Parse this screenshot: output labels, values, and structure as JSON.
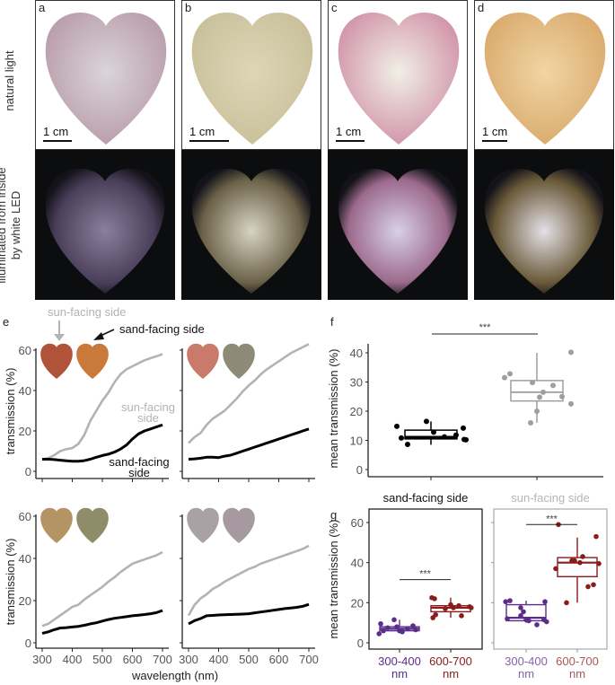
{
  "photos": {
    "row_labels": [
      "natural light",
      "illuminated from inside",
      "by white LED"
    ],
    "panels": [
      {
        "letter": "a",
        "scale": "1 cm",
        "light_colors": [
          "#d9d5d8",
          "#b89aa8"
        ],
        "dark_colors": [
          "#8c7f9e",
          "#4a3f5a"
        ]
      },
      {
        "letter": "b",
        "scale": "1 cm",
        "light_colors": [
          "#ddd7b8",
          "#c8bf98"
        ],
        "dark_colors": [
          "#d8d4c4",
          "#6b6248"
        ]
      },
      {
        "letter": "c",
        "scale": "1 cm",
        "light_colors": [
          "#f1efe6",
          "#cf8fa6"
        ],
        "dark_colors": [
          "#d8d0e6",
          "#9c6a8c"
        ]
      },
      {
        "letter": "d",
        "scale": "1 cm",
        "light_colors": [
          "#f0d6a4",
          "#d9a86a"
        ],
        "dark_colors": [
          "#e4e0e6",
          "#6a5a3a"
        ]
      }
    ]
  },
  "annotations": {
    "panel_e_letter": "e",
    "panel_f_letter": "f",
    "panel_g_letter": "g",
    "sun_facing_side": "sun-facing side",
    "sand_facing_side": "sand-facing side",
    "sun_facing_label_1": "sun-facing",
    "sun_facing_label_2": "side",
    "sand_facing_label_1": "sand-facing",
    "sand_facing_label_2": "side",
    "significance": "***"
  },
  "colors": {
    "sun": "#b3b3b3",
    "sand": "#000000",
    "uv_band": "#5a2d8c",
    "red_band": "#8b1c1c",
    "axis_text": "#555555"
  },
  "chart_data": [
    {
      "id": "e",
      "type": "line",
      "xlabel": "wavelength (nm)",
      "ylabel": "transmission (%)",
      "xlim": [
        300,
        700
      ],
      "ylim": [
        0,
        60
      ],
      "xticks": [
        300,
        400,
        500,
        600,
        700
      ],
      "yticks": [
        0,
        20,
        40,
        60
      ],
      "subplots": [
        {
          "name": "e-top-left",
          "thumb_colors": [
            "#b0533a",
            "#c97a3a"
          ],
          "series": [
            {
              "name": "sun-facing side",
              "x": [
                300,
                320,
                340,
                360,
                380,
                400,
                420,
                440,
                460,
                480,
                500,
                520,
                540,
                560,
                580,
                600,
                620,
                640,
                660,
                680,
                700
              ],
              "y": [
                6,
                6.5,
                8,
                10,
                11,
                11.5,
                13.5,
                18,
                25,
                30,
                35,
                39,
                44,
                48,
                50.5,
                52,
                53.5,
                55,
                56,
                57,
                58
              ]
            },
            {
              "name": "sand-facing side",
              "x": [
                300,
                320,
                340,
                360,
                380,
                400,
                420,
                440,
                460,
                480,
                500,
                520,
                540,
                560,
                580,
                600,
                620,
                640,
                660,
                680,
                700
              ],
              "y": [
                6,
                6,
                5.8,
                5.5,
                5.2,
                5,
                5,
                5.3,
                6,
                7,
                7.8,
                8.5,
                9.5,
                11,
                13,
                16,
                18.5,
                20,
                21,
                22,
                23
              ]
            }
          ]
        },
        {
          "name": "e-top-right",
          "thumb_colors": [
            "#c97a6a",
            "#8e8a78"
          ],
          "series": [
            {
              "name": "sun-facing side",
              "x": [
                300,
                320,
                340,
                360,
                380,
                400,
                420,
                440,
                460,
                480,
                500,
                520,
                540,
                560,
                580,
                600,
                620,
                640,
                660,
                680,
                700
              ],
              "y": [
                14,
                17,
                19,
                23,
                26,
                28,
                30,
                33,
                36,
                39.5,
                42.5,
                45,
                48,
                50.5,
                52.5,
                54.5,
                56.5,
                58.5,
                60,
                61.5,
                63
              ]
            },
            {
              "name": "sand-facing side",
              "x": [
                300,
                320,
                340,
                360,
                380,
                400,
                420,
                440,
                460,
                480,
                500,
                520,
                540,
                560,
                580,
                600,
                620,
                640,
                660,
                680,
                700
              ],
              "y": [
                6,
                6.2,
                6.5,
                7,
                7,
                6.8,
                7.5,
                8,
                9,
                10,
                11,
                12,
                13,
                14,
                15,
                16,
                17,
                18,
                19,
                20,
                21
              ]
            }
          ]
        },
        {
          "name": "e-bottom-left",
          "thumb_colors": [
            "#b59464",
            "#8f8c6a"
          ],
          "series": [
            {
              "name": "sun-facing side",
              "x": [
                300,
                320,
                340,
                360,
                380,
                400,
                420,
                440,
                460,
                480,
                500,
                520,
                540,
                560,
                580,
                600,
                620,
                640,
                660,
                680,
                700
              ],
              "y": [
                8,
                9,
                11,
                13,
                15,
                17,
                18,
                20.5,
                22.5,
                24.5,
                26.5,
                29,
                31,
                33.5,
                35.5,
                37.5,
                38.5,
                39.5,
                40.5,
                41.5,
                43
              ]
            },
            {
              "name": "sand-facing side",
              "x": [
                300,
                320,
                340,
                360,
                380,
                400,
                420,
                440,
                460,
                480,
                500,
                520,
                540,
                560,
                580,
                600,
                620,
                640,
                660,
                680,
                700
              ],
              "y": [
                4.5,
                5.2,
                6.2,
                7,
                7.2,
                7.5,
                7.8,
                8.3,
                9,
                9.5,
                10.3,
                11,
                11.6,
                12,
                12.4,
                12.8,
                13.1,
                13.4,
                13.8,
                14.3,
                15.3
              ]
            }
          ]
        },
        {
          "name": "e-bottom-right",
          "thumb_colors": [
            "#a8a2a4",
            "#a69aa0"
          ],
          "series": [
            {
              "name": "sun-facing side",
              "x": [
                300,
                320,
                340,
                360,
                380,
                400,
                420,
                440,
                460,
                480,
                500,
                520,
                540,
                560,
                580,
                600,
                620,
                640,
                660,
                680,
                700
              ],
              "y": [
                13,
                18,
                21,
                23,
                25.5,
                27,
                29,
                30.5,
                32,
                33.5,
                35,
                36,
                37.5,
                38.5,
                39.5,
                40.5,
                41.5,
                42.5,
                43.5,
                44.5,
                46
              ]
            },
            {
              "name": "sand-facing side",
              "x": [
                300,
                320,
                340,
                360,
                380,
                400,
                420,
                440,
                460,
                480,
                500,
                520,
                540,
                560,
                580,
                600,
                620,
                640,
                660,
                680,
                700
              ],
              "y": [
                9,
                10.5,
                11.5,
                12.8,
                13,
                13.2,
                13.3,
                13.4,
                13.5,
                13.6,
                13.8,
                14.2,
                14.6,
                15,
                15.4,
                15.8,
                16.2,
                16.5,
                16.8,
                17.3,
                18.2
              ]
            }
          ]
        }
      ]
    },
    {
      "id": "f",
      "type": "box",
      "ylabel": "mean transmission (%)",
      "ylim": [
        0,
        42
      ],
      "yticks": [
        0,
        10,
        20,
        30,
        40
      ],
      "categories": [
        "sand-facing side",
        "sun-facing side"
      ],
      "groups": [
        {
          "name": "sand-facing side",
          "color": "#000000",
          "box": {
            "min": 8.5,
            "q1": 10.5,
            "median": 11,
            "q3": 13.5,
            "max": 16.5
          },
          "points": [
            [
              -0.38,
              14.8
            ],
            [
              -0.33,
              10.8
            ],
            [
              -0.26,
              8.6
            ],
            [
              -0.05,
              16.5
            ],
            [
              0.03,
              12.8
            ],
            [
              0.15,
              11.2
            ],
            [
              0.28,
              11.8
            ],
            [
              0.36,
              14.2
            ],
            [
              0.37,
              10.3
            ],
            [
              0.39,
              10.2
            ]
          ]
        },
        {
          "name": "sun-facing side",
          "color": "#9e9e9e",
          "box": {
            "min": 16,
            "q1": 23.5,
            "median": 26.5,
            "q3": 30.5,
            "max": 40
          },
          "points": [
            [
              -0.36,
              31.5
            ],
            [
              -0.3,
              32.8
            ],
            [
              -0.05,
              29.8
            ],
            [
              -0.07,
              16
            ],
            [
              0.0,
              20
            ],
            [
              0.03,
              24.8
            ],
            [
              0.07,
              26.5
            ],
            [
              0.18,
              28.8
            ],
            [
              0.28,
              25
            ],
            [
              0.38,
              40.2
            ],
            [
              0.38,
              22.5
            ]
          ]
        }
      ],
      "significance": "***"
    },
    {
      "id": "g",
      "type": "box",
      "ylabel": "mean transmission (%)",
      "ylim": [
        0,
        65
      ],
      "yticks": [
        0,
        20,
        40,
        60
      ],
      "categories": [
        "300-400 nm",
        "600-700 nm"
      ],
      "category_line1": [
        "300-400",
        "600-700"
      ],
      "category_line2": [
        "nm",
        "nm"
      ],
      "facets": [
        {
          "title": "sand-facing side",
          "groups": [
            {
              "name": "300-400 nm",
              "box": {
                "min": 5,
                "q1": 6,
                "median": 7,
                "q3": 8,
                "max": 11.5
              },
              "points": [
                [
                  -0.38,
                  4.5
                ],
                [
                  -0.35,
                  9.5
                ],
                [
                  -0.3,
                  6
                ],
                [
                  -0.22,
                  7.5
                ],
                [
                  -0.1,
                  11.5
                ],
                [
                  0.0,
                  6
                ],
                [
                  0.15,
                  7
                ],
                [
                  0.25,
                  8.5
                ],
                [
                  0.3,
                  6.5
                ],
                [
                  0.05,
                  5.5
                ],
                [
                  -0.05,
                  8
                ]
              ]
            },
            {
              "name": "600-700 nm",
              "box": {
                "min": 12.5,
                "q1": 15.5,
                "median": 17.5,
                "q3": 18.5,
                "max": 22.5
              },
              "points": [
                [
                  -0.35,
                  22.5
                ],
                [
                  -0.3,
                  22
                ],
                [
                  -0.33,
                  12.5
                ],
                [
                  -0.28,
                  14
                ],
                [
                  -0.1,
                  17
                ],
                [
                  0.0,
                  19
                ],
                [
                  0.05,
                  17.5
                ],
                [
                  0.2,
                  13.5
                ],
                [
                  0.35,
                  18
                ],
                [
                  0.38,
                  17.5
                ],
                [
                  0.15,
                  18.5
                ]
              ]
            }
          ]
        },
        {
          "title": "sun-facing side",
          "groups": [
            {
              "name": "300-400 nm",
              "box": {
                "min": 10,
                "q1": 11,
                "median": 12.5,
                "q3": 19,
                "max": 21
              },
              "points": [
                [
                  -0.38,
                  20.5
                ],
                [
                  -0.3,
                  21
                ],
                [
                  -0.1,
                  17.5
                ],
                [
                  -0.05,
                  15.5
                ],
                [
                  -0.1,
                  13.5
                ],
                [
                  0.0,
                  11.5
                ],
                [
                  0.05,
                  11
                ],
                [
                  0.2,
                  9
                ],
                [
                  0.35,
                  20.5
                ],
                [
                  0.33,
                  11.5
                ],
                [
                  0.38,
                  10.5
                ],
                [
                  -0.35,
                  12
                ]
              ]
            },
            {
              "name": "600-700 nm",
              "box": {
                "min": 20,
                "q1": 33,
                "median": 40,
                "q3": 42.5,
                "max": 52.5
              },
              "points": [
                [
                  -0.4,
                  37
                ],
                [
                  -0.35,
                  59
                ],
                [
                  -0.2,
                  20
                ],
                [
                  -0.1,
                  41
                ],
                [
                  -0.05,
                  41
                ],
                [
                  0.05,
                  40
                ],
                [
                  0.1,
                  43
                ],
                [
                  0.35,
                  53
                ],
                [
                  0.4,
                  39.5
                ],
                [
                  0.3,
                  29
                ],
                [
                  0.2,
                  28
                ]
              ]
            }
          ]
        }
      ],
      "significance": "***"
    }
  ]
}
